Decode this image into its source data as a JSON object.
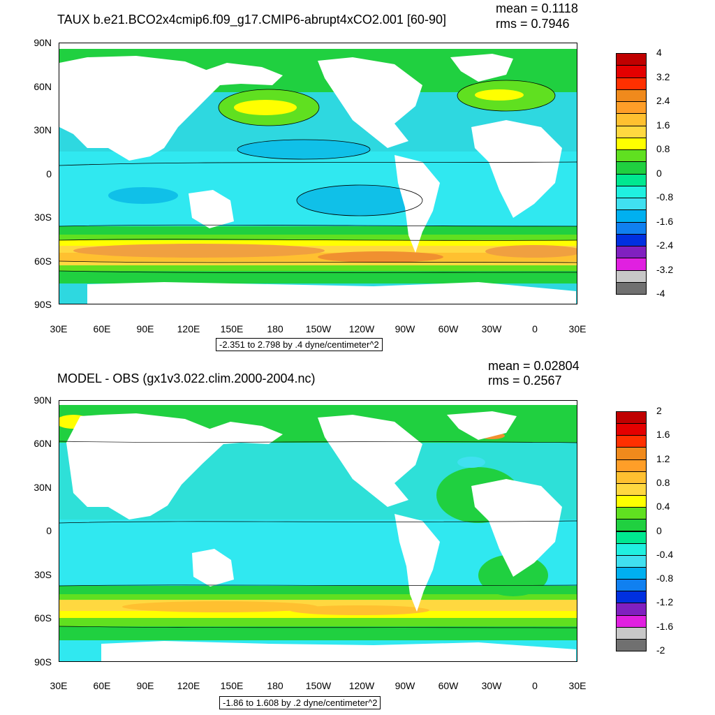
{
  "panels": [
    {
      "title": "TAUX b.e21.BCO2x4cmip6.f09_g17.CMIP6-abrupt4xCO2.001 [60-90]",
      "mean": "mean = 0.1118",
      "rms": "rms = 0.7946",
      "subtitle": "-2.351 to 2.798 by .4 dyne/centimeter^2",
      "y_ticks": [
        "90N",
        "60N",
        "30N",
        "0",
        "30S",
        "60S",
        "90S"
      ],
      "x_ticks": [
        "30E",
        "60E",
        "90E",
        "120E",
        "150E",
        "180",
        "150W",
        "120W",
        "90W",
        "60W",
        "30W",
        "0",
        "30E"
      ],
      "colorbar": {
        "labels": [
          "4",
          "3.2",
          "2.4",
          "1.6",
          "0.8",
          "0",
          "-0.8",
          "-1.6",
          "-2.4",
          "-3.2",
          "-4"
        ],
        "colors": [
          "#c00000",
          "#e40000",
          "#ff3000",
          "#f08a1c",
          "#ff9e28",
          "#ffc030",
          "#ffd840",
          "#ffff00",
          "#60e020",
          "#20d040",
          "#00e890",
          "#20f0e0",
          "#40e0f0",
          "#00b0f0",
          "#1080f0",
          "#0030e0",
          "#8020c0",
          "#e020e0",
          "#c8c8c8",
          "#707070"
        ]
      }
    },
    {
      "title": "MODEL - OBS (gx1v3.022.clim.2000-2004.nc)",
      "mean": "mean = 0.02804",
      "rms": "rms = 0.2567",
      "subtitle": "-1.86 to 1.608 by .2 dyne/centimeter^2",
      "y_ticks": [
        "90N",
        "60N",
        "30N",
        "0",
        "30S",
        "60S",
        "90S"
      ],
      "x_ticks": [
        "30E",
        "60E",
        "90E",
        "120E",
        "150E",
        "180",
        "150W",
        "120W",
        "90W",
        "60W",
        "30W",
        "0",
        "30E"
      ],
      "colorbar": {
        "labels": [
          "2",
          "1.6",
          "1.2",
          "0.8",
          "0.4",
          "0",
          "-0.4",
          "-0.8",
          "-1.2",
          "-1.6",
          "-2"
        ],
        "colors": [
          "#c00000",
          "#e40000",
          "#ff3000",
          "#f08a1c",
          "#ff9e28",
          "#ffc030",
          "#ffd840",
          "#ffff00",
          "#60e020",
          "#20d040",
          "#00e890",
          "#20f0e0",
          "#40e0f0",
          "#00b0f0",
          "#1080f0",
          "#0030e0",
          "#8020c0",
          "#e020e0",
          "#c8c8c8",
          "#707070"
        ]
      }
    }
  ]
}
